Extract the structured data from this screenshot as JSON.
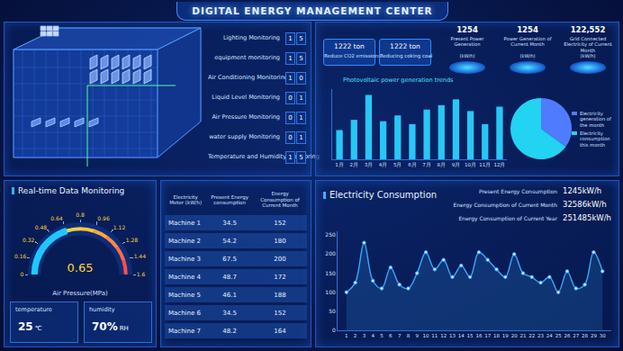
{
  "header": {
    "title": "DIGITAL ENERGY MANAGEMENT CENTER"
  },
  "monitoring": {
    "items": [
      {
        "label": "Lighting Monitoring",
        "count": "15"
      },
      {
        "label": "equipment monitoring",
        "count": "15"
      },
      {
        "label": "Air Conditioning Monitoring",
        "count": "10"
      },
      {
        "label": "Liquid Level Monitoring",
        "count": "01"
      },
      {
        "label": "Air Pressure Monitoring",
        "count": "01"
      },
      {
        "label": "water supply Monitoring",
        "count": "01"
      },
      {
        "label": "Temperature and Humidity Monitoring",
        "count": "15"
      }
    ]
  },
  "generation": {
    "badges": [
      {
        "value": "1222 ton",
        "label": "Reduce CO2 emissions"
      },
      {
        "value": "1222 ton",
        "label": "Reducing coking coal"
      }
    ],
    "stats": [
      {
        "value": "1254",
        "label": "Present Power Generation",
        "unit": "(kW/h)"
      },
      {
        "value": "1254",
        "label": "Power Generation of Current Month",
        "unit": "(kW/h)"
      },
      {
        "value": "122,552",
        "label": "Grid Connected Electricity of Current Month",
        "unit": "(kW/h)"
      }
    ]
  },
  "realtime": {
    "readings": [
      {
        "label": "temperature",
        "value": "25",
        "unit": "℃"
      },
      {
        "label": "humidity",
        "value": "70%",
        "unit": "RH"
      }
    ]
  },
  "table": {
    "header": [
      "Electricity Meter (kW/h)",
      "Present Energy consumption",
      "Energy Consumption of Current Month"
    ],
    "rows": [
      [
        "Machine 1",
        34.5,
        152
      ],
      [
        "Machine 2",
        54.2,
        180
      ],
      [
        "Machine 3",
        67.5,
        200
      ],
      [
        "Machine 4",
        48.7,
        172
      ],
      [
        "Machine 5",
        46.1,
        188
      ],
      [
        "Machine 6",
        34.5,
        152
      ],
      [
        "Machine 7",
        48.2,
        164
      ]
    ]
  },
  "consumption": {
    "stats": [
      {
        "label": "Present Energy Consumption",
        "value": "1245kW/h"
      },
      {
        "label": "Energy Consumption of Current Month",
        "value": "32586kW/h"
      },
      {
        "label": "Energy Consumption of Current Year",
        "value": "251485kW/h"
      }
    ]
  },
  "chart_data": [
    {
      "type": "bar",
      "title": "Photovoltaic power generation trends",
      "categories": [
        "1月",
        "2月",
        "3月",
        "4月",
        "5月",
        "6月",
        "7月",
        "8月",
        "9月",
        "10月",
        "11月",
        "12月"
      ],
      "values": [
        100,
        135,
        220,
        130,
        150,
        120,
        170,
        185,
        205,
        165,
        120,
        180
      ],
      "color": "#27c7f5",
      "ylim": [
        0,
        240
      ],
      "tick_labels": "x",
      "grid": false
    },
    {
      "type": "pie",
      "categories": [
        "Electricity generation of the month",
        "Electricity consumption this month"
      ],
      "values": [
        35,
        65
      ],
      "colors": [
        "#4f7bff",
        "#22d3f2"
      ]
    },
    {
      "type": "gauge",
      "title": "Real-time Data Monitoring",
      "label": "Air Pressure(MPa)",
      "value": 0.65,
      "ylim": [
        0,
        1.6
      ],
      "yticks": [
        0,
        0.16,
        0.32,
        0.48,
        0.64,
        0.8,
        0.96,
        1.12,
        1.28,
        1.44,
        1.6
      ],
      "color": "#1ec8ff"
    },
    {
      "type": "line",
      "title": "Electricity Consumption",
      "x": [
        1,
        2,
        3,
        4,
        5,
        6,
        7,
        8,
        9,
        10,
        11,
        12,
        13,
        14,
        15,
        16,
        17,
        18,
        19,
        20,
        21,
        22,
        23,
        24,
        25,
        26,
        27,
        28,
        29,
        30
      ],
      "values": [
        100,
        125,
        230,
        130,
        110,
        165,
        120,
        110,
        150,
        205,
        160,
        185,
        140,
        170,
        140,
        205,
        185,
        160,
        140,
        200,
        150,
        140,
        125,
        140,
        100,
        155,
        110,
        120,
        205,
        155
      ],
      "xlim": [
        0,
        31
      ],
      "xticks": [
        1,
        2,
        3,
        4,
        5,
        6,
        7,
        8,
        9,
        10,
        11,
        12,
        13,
        14,
        15,
        16,
        17,
        18,
        19,
        20,
        21,
        22,
        23,
        24,
        25,
        26,
        27,
        28,
        29,
        30
      ],
      "ylim": [
        0,
        260
      ],
      "yticks": [
        0,
        50,
        100,
        150,
        200,
        250
      ],
      "color": "#3aa8ff",
      "marker": "circle",
      "line_style": "solid",
      "grid": false
    }
  ]
}
